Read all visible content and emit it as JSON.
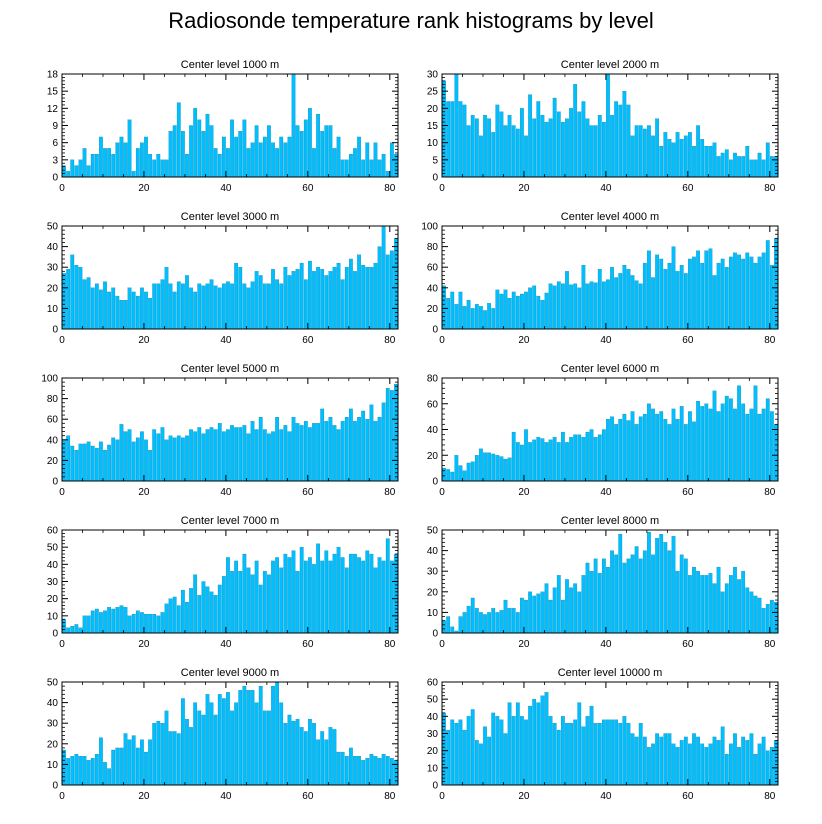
{
  "title": "Radiosonde temperature rank histograms by level",
  "bar_color": "#00BFFF",
  "chart_data": [
    {
      "type": "bar",
      "title": "Center level 1000 m",
      "xlim": [
        0,
        82
      ],
      "xticks": [
        0,
        20,
        40,
        60,
        80
      ],
      "ylim": [
        0,
        18
      ],
      "yticks": [
        0,
        3,
        6,
        9,
        12,
        15,
        18
      ],
      "values": [
        2,
        1,
        3,
        2,
        3,
        5,
        2,
        4,
        4,
        7,
        5,
        5,
        4,
        6,
        7,
        6,
        10,
        1,
        5,
        6,
        7,
        4,
        3,
        4,
        3,
        3,
        8,
        9,
        13,
        8,
        4,
        9,
        12,
        10,
        8,
        11,
        9,
        5,
        4,
        7,
        5,
        10,
        7,
        8,
        10,
        5,
        6,
        9,
        6,
        7,
        9,
        6,
        5,
        7,
        6,
        7,
        18,
        9,
        8,
        10,
        12,
        5,
        11,
        8,
        9,
        9,
        5,
        7,
        3,
        3,
        4,
        5,
        7,
        3,
        6,
        3,
        6,
        3,
        4,
        1,
        6,
        4
      ]
    },
    {
      "type": "bar",
      "title": "Center level 2000 m",
      "xlim": [
        0,
        82
      ],
      "xticks": [
        0,
        20,
        40,
        60,
        80
      ],
      "ylim": [
        0,
        30
      ],
      "yticks": [
        0,
        5,
        10,
        15,
        20,
        25,
        30
      ],
      "values": [
        28,
        22,
        22,
        30,
        22,
        21,
        15,
        18,
        17,
        12,
        18,
        17,
        13,
        21,
        19,
        15,
        18,
        15,
        14,
        20,
        12,
        24,
        17,
        22,
        18,
        16,
        17,
        23,
        19,
        16,
        17,
        20,
        27,
        19,
        22,
        17,
        15,
        15,
        18,
        16,
        30,
        18,
        22,
        21,
        25,
        21,
        12,
        15,
        15,
        14,
        15,
        12,
        17,
        9,
        13,
        11,
        10,
        13,
        11,
        12,
        13,
        9,
        15,
        11,
        9,
        9,
        10,
        6,
        7,
        8,
        5,
        7,
        6,
        6,
        9,
        5,
        5,
        7,
        5,
        10,
        6,
        6
      ]
    },
    {
      "type": "bar",
      "title": "Center level 3000 m",
      "xlim": [
        0,
        82
      ],
      "xticks": [
        0,
        20,
        40,
        60,
        80
      ],
      "ylim": [
        0,
        50
      ],
      "yticks": [
        0,
        10,
        20,
        30,
        40,
        50
      ],
      "values": [
        27,
        29,
        36,
        31,
        30,
        24,
        25,
        20,
        22,
        19,
        23,
        18,
        20,
        16,
        14,
        14,
        20,
        18,
        16,
        20,
        18,
        15,
        22,
        22,
        24,
        30,
        22,
        18,
        23,
        22,
        26,
        20,
        18,
        22,
        21,
        22,
        24,
        21,
        20,
        22,
        23,
        22,
        32,
        30,
        22,
        20,
        23,
        28,
        26,
        22,
        22,
        29,
        24,
        22,
        30,
        26,
        28,
        29,
        32,
        24,
        33,
        28,
        30,
        29,
        26,
        28,
        30,
        32,
        24,
        30,
        34,
        28,
        36,
        31,
        30,
        30,
        32,
        40,
        50,
        36,
        38,
        44
      ]
    },
    {
      "type": "bar",
      "title": "Center level 4000 m",
      "xlim": [
        0,
        82
      ],
      "xticks": [
        0,
        20,
        40,
        60,
        80
      ],
      "ylim": [
        0,
        100
      ],
      "yticks": [
        0,
        20,
        40,
        60,
        80,
        100
      ],
      "values": [
        42,
        30,
        36,
        24,
        36,
        22,
        28,
        20,
        24,
        22,
        18,
        25,
        20,
        38,
        34,
        38,
        30,
        36,
        32,
        34,
        36,
        40,
        42,
        32,
        28,
        35,
        44,
        42,
        46,
        44,
        56,
        43,
        44,
        40,
        62,
        44,
        46,
        45,
        58,
        46,
        48,
        60,
        50,
        54,
        62,
        58,
        52,
        47,
        44,
        64,
        76,
        50,
        72,
        68,
        58,
        64,
        80,
        56,
        62,
        54,
        68,
        70,
        76,
        64,
        76,
        78,
        52,
        64,
        68,
        60,
        70,
        74,
        72,
        68,
        74,
        70,
        64,
        70,
        74,
        86,
        62,
        88
      ]
    },
    {
      "type": "bar",
      "title": "Center level 5000 m",
      "xlim": [
        0,
        82
      ],
      "xticks": [
        0,
        20,
        40,
        60,
        80
      ],
      "ylim": [
        0,
        100
      ],
      "yticks": [
        0,
        20,
        40,
        60,
        80,
        100
      ],
      "values": [
        40,
        44,
        34,
        30,
        36,
        36,
        38,
        34,
        32,
        38,
        30,
        35,
        42,
        40,
        55,
        48,
        50,
        38,
        42,
        48,
        40,
        30,
        50,
        46,
        52,
        40,
        44,
        42,
        44,
        42,
        44,
        50,
        48,
        52,
        46,
        50,
        52,
        50,
        56,
        48,
        50,
        54,
        52,
        52,
        54,
        46,
        58,
        50,
        62,
        50,
        46,
        48,
        62,
        50,
        54,
        48,
        62,
        56,
        54,
        58,
        52,
        56,
        56,
        70,
        58,
        62,
        54,
        50,
        58,
        62,
        70,
        58,
        62,
        68,
        60,
        74,
        58,
        62,
        76,
        90,
        88,
        94
      ]
    },
    {
      "type": "bar",
      "title": "Center level 6000 m",
      "xlim": [
        0,
        82
      ],
      "xticks": [
        0,
        20,
        40,
        60,
        80
      ],
      "ylim": [
        0,
        80
      ],
      "yticks": [
        0,
        20,
        40,
        60,
        80
      ],
      "values": [
        10,
        9,
        7,
        20,
        12,
        8,
        14,
        15,
        20,
        25,
        22,
        22,
        21,
        20,
        19,
        17,
        18,
        38,
        30,
        28,
        40,
        30,
        32,
        34,
        33,
        30,
        32,
        34,
        30,
        38,
        30,
        34,
        36,
        36,
        34,
        38,
        40,
        34,
        36,
        40,
        48,
        50,
        44,
        48,
        52,
        47,
        54,
        44,
        50,
        52,
        60,
        56,
        52,
        54,
        48,
        44,
        56,
        48,
        58,
        44,
        54,
        46,
        62,
        58,
        60,
        56,
        70,
        54,
        60,
        66,
        64,
        56,
        74,
        60,
        52,
        56,
        74,
        52,
        56,
        64,
        54,
        44
      ]
    },
    {
      "type": "bar",
      "title": "Center level 7000 m",
      "xlim": [
        0,
        82
      ],
      "xticks": [
        0,
        20,
        40,
        60,
        80
      ],
      "ylim": [
        0,
        60
      ],
      "yticks": [
        0,
        10,
        20,
        30,
        40,
        50,
        60
      ],
      "values": [
        8,
        3,
        4,
        5,
        3,
        10,
        10,
        13,
        14,
        12,
        13,
        15,
        14,
        15,
        16,
        15,
        10,
        11,
        13,
        12,
        11,
        11,
        11,
        10,
        12,
        17,
        20,
        21,
        16,
        25,
        18,
        26,
        34,
        22,
        30,
        27,
        24,
        22,
        28,
        33,
        44,
        36,
        42,
        36,
        46,
        38,
        34,
        42,
        28,
        36,
        34,
        42,
        44,
        38,
        46,
        44,
        48,
        36,
        50,
        42,
        44,
        40,
        52,
        42,
        48,
        42,
        46,
        50,
        44,
        38,
        46,
        46,
        44,
        42,
        48,
        46,
        38,
        44,
        42,
        55,
        42,
        46
      ]
    },
    {
      "type": "bar",
      "title": "Center level 8000 m",
      "xlim": [
        0,
        82
      ],
      "xticks": [
        0,
        20,
        40,
        60,
        80
      ],
      "ylim": [
        0,
        50
      ],
      "yticks": [
        0,
        10,
        20,
        30,
        40,
        50
      ],
      "values": [
        6,
        8,
        3,
        1,
        8,
        10,
        13,
        17,
        12,
        10,
        9,
        10,
        12,
        10,
        11,
        16,
        12,
        12,
        10,
        17,
        16,
        20,
        18,
        19,
        20,
        24,
        16,
        22,
        28,
        16,
        26,
        22,
        24,
        20,
        28,
        34,
        30,
        36,
        29,
        36,
        32,
        40,
        38,
        48,
        34,
        36,
        38,
        42,
        36,
        40,
        49,
        38,
        46,
        48,
        44,
        40,
        47,
        30,
        38,
        36,
        28,
        32,
        30,
        28,
        28,
        29,
        24,
        32,
        20,
        24,
        28,
        32,
        26,
        30,
        22,
        20,
        18,
        17,
        12,
        14,
        16,
        15
      ]
    },
    {
      "type": "bar",
      "title": "Center level 9000 m",
      "xlim": [
        0,
        82
      ],
      "xticks": [
        0,
        20,
        40,
        60,
        80
      ],
      "ylim": [
        0,
        50
      ],
      "yticks": [
        0,
        10,
        20,
        30,
        40,
        50
      ],
      "values": [
        17,
        13,
        14,
        15,
        14,
        14,
        12,
        13,
        15,
        23,
        11,
        8,
        17,
        18,
        18,
        25,
        22,
        24,
        18,
        22,
        16,
        22,
        30,
        31,
        30,
        36,
        26,
        26,
        25,
        42,
        32,
        28,
        40,
        36,
        34,
        44,
        40,
        34,
        44,
        42,
        45,
        36,
        40,
        46,
        48,
        46,
        46,
        40,
        48,
        36,
        36,
        48,
        50,
        40,
        30,
        34,
        31,
        32,
        28,
        26,
        32,
        30,
        22,
        26,
        22,
        28,
        27,
        16,
        16,
        14,
        18,
        14,
        14,
        12,
        13,
        15,
        14,
        13,
        15,
        14,
        13,
        12
      ]
    },
    {
      "type": "bar",
      "title": "Center level 10000 m",
      "xlim": [
        0,
        82
      ],
      "xticks": [
        0,
        20,
        40,
        60,
        80
      ],
      "ylim": [
        0,
        60
      ],
      "yticks": [
        0,
        10,
        20,
        30,
        40,
        50,
        60
      ],
      "values": [
        42,
        32,
        38,
        36,
        38,
        32,
        40,
        44,
        26,
        24,
        34,
        28,
        42,
        40,
        38,
        30,
        48,
        40,
        48,
        40,
        38,
        46,
        50,
        48,
        52,
        54,
        40,
        36,
        32,
        40,
        36,
        36,
        38,
        48,
        34,
        40,
        46,
        36,
        36,
        38,
        38,
        38,
        38,
        36,
        40,
        36,
        30,
        28,
        36,
        28,
        22,
        24,
        30,
        28,
        30,
        30,
        24,
        22,
        26,
        28,
        24,
        30,
        28,
        24,
        22,
        24,
        28,
        26,
        34,
        18,
        24,
        30,
        22,
        28,
        26,
        30,
        18,
        24,
        28,
        20,
        22,
        26
      ]
    }
  ]
}
